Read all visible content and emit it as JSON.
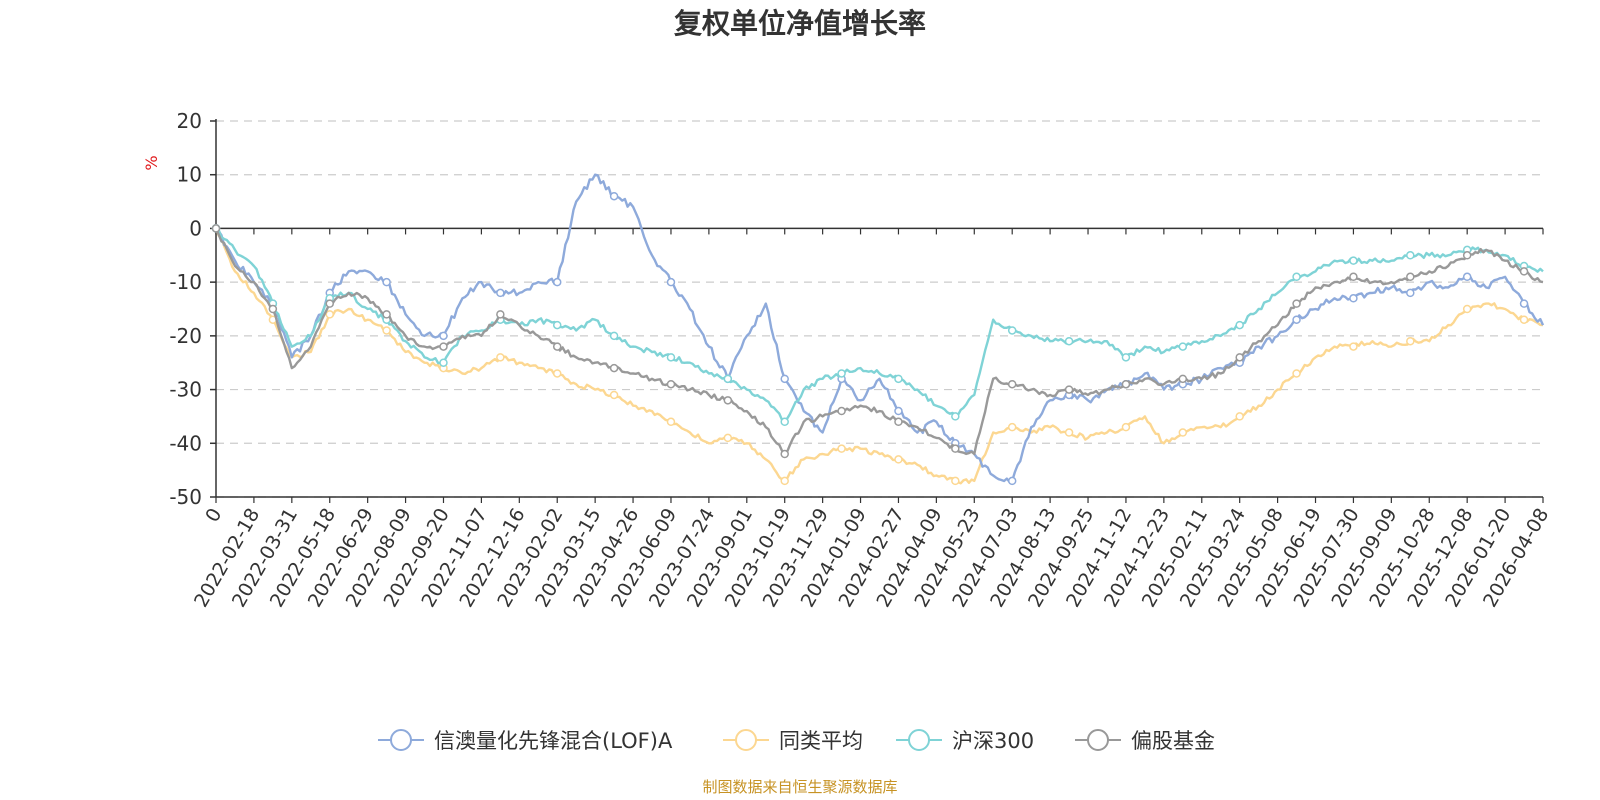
{
  "colors": {
    "fund": "#8eaadb",
    "peer": "#fcd791",
    "hs300": "#7fd3d6",
    "equity": "#999999",
    "grid": "#cccccc",
    "axis": "#333333",
    "unit": "#e0191c",
    "source": "#c79324"
  },
  "chart_data": {
    "type": "line",
    "title": "复权单位净值增长率",
    "ylabel": "%",
    "ylim": [
      -50,
      20
    ],
    "yticks": [
      20,
      10,
      0,
      -10,
      -20,
      -30,
      -40,
      -50
    ],
    "xlabel": "",
    "x_tick_labels": [
      "0",
      "2022-02-18",
      "2022-03-31",
      "2022-05-18",
      "2022-06-29",
      "2022-08-09",
      "2022-09-20",
      "2022-11-07",
      "2022-12-16",
      "2023-02-02",
      "2023-03-15",
      "2023-04-26",
      "2023-06-09",
      "2023-07-24",
      "2023-09-01",
      "2023-10-19",
      "2023-11-29",
      "2024-01-09",
      "2024-02-27",
      "2024-04-09",
      "2024-05-23",
      "2024-07-03",
      "2024-08-13",
      "2024-09-25",
      "2024-11-12",
      "2024-12-23",
      "2025-02-11",
      "2025-03-24",
      "2025-05-08",
      "2025-06-19",
      "2025-07-30",
      "2025-09-09",
      "2025-10-28",
      "2025-12-08",
      "2026-01-20",
      "2026-04-08"
    ],
    "x_index": [
      0,
      0.5,
      1,
      1.5,
      2,
      2.5,
      3,
      3.5,
      4,
      4.5,
      5,
      5.5,
      6,
      6.5,
      7,
      7.5,
      8,
      8.5,
      9,
      9.5,
      10,
      10.5,
      11,
      11.5,
      12,
      12.5,
      13,
      13.5,
      14,
      14.5,
      15,
      15.5,
      16,
      16.5,
      17,
      17.5,
      18,
      18.5,
      19,
      19.5,
      20,
      20.5,
      21,
      21.5,
      22,
      22.5,
      23,
      23.5,
      24,
      24.5,
      25,
      25.5,
      26,
      26.5,
      27,
      27.5,
      28,
      28.5,
      29,
      29.5,
      30,
      30.5,
      31,
      31.5,
      32,
      32.5,
      33,
      33.5,
      34,
      34.5,
      35
    ],
    "series": [
      {
        "name": "信澳量化先锋混合(LOF)A",
        "values": [
          0,
          -6,
          -10,
          -14,
          -24,
          -20,
          -12,
          -8,
          -8,
          -10,
          -16,
          -20,
          -20,
          -13,
          -10,
          -12,
          -12,
          -10,
          -10,
          5,
          10,
          6,
          4,
          -5,
          -10,
          -15,
          -22,
          -28,
          -20,
          -14,
          -28,
          -34,
          -38,
          -28,
          -32,
          -28,
          -34,
          -38,
          -36,
          -40,
          -42,
          -46,
          -47,
          -37,
          -32,
          -31,
          -32,
          -30,
          -29,
          -27,
          -30,
          -29,
          -28,
          -26,
          -25,
          -22,
          -20,
          -17,
          -15,
          -13,
          -13,
          -12,
          -11,
          -12,
          -10,
          -11,
          -9,
          -11,
          -9,
          -14,
          -18
        ]
      },
      {
        "name": "同类平均",
        "values": [
          0,
          -8,
          -12,
          -17,
          -24,
          -23,
          -16,
          -15,
          -17,
          -19,
          -23,
          -25,
          -26,
          -27,
          -26,
          -24,
          -25,
          -26,
          -27,
          -29,
          -30,
          -31,
          -33,
          -34,
          -36,
          -38,
          -40,
          -39,
          -40,
          -43,
          -47,
          -43,
          -42,
          -41,
          -41,
          -42,
          -43,
          -44,
          -46,
          -47,
          -47,
          -38,
          -37,
          -38,
          -37,
          -38,
          -39,
          -38,
          -37,
          -35,
          -40,
          -38,
          -37,
          -37,
          -35,
          -33,
          -30,
          -27,
          -24,
          -22,
          -22,
          -21,
          -22,
          -21,
          -21,
          -18,
          -15,
          -14,
          -15,
          -17,
          -18
        ]
      },
      {
        "name": "沪深300",
        "values": [
          0,
          -4,
          -7,
          -14,
          -22,
          -20,
          -13,
          -12,
          -15,
          -17,
          -21,
          -24,
          -25,
          -20,
          -19,
          -17,
          -18,
          -17,
          -18,
          -19,
          -17,
          -20,
          -22,
          -23,
          -24,
          -25,
          -27,
          -28,
          -30,
          -32,
          -36,
          -30,
          -28,
          -27,
          -26,
          -27,
          -28,
          -30,
          -33,
          -35,
          -31,
          -17,
          -19,
          -20,
          -21,
          -21,
          -21,
          -21,
          -24,
          -22,
          -23,
          -22,
          -21,
          -20,
          -18,
          -15,
          -12,
          -9,
          -8,
          -6,
          -6,
          -6,
          -6,
          -5,
          -5,
          -5,
          -4,
          -4,
          -5,
          -7,
          -8
        ]
      },
      {
        "name": "偏股基金",
        "values": [
          0,
          -7,
          -10,
          -15,
          -26,
          -22,
          -14,
          -12,
          -13,
          -16,
          -20,
          -22,
          -22,
          -20,
          -20,
          -16,
          -18,
          -20,
          -22,
          -24,
          -25,
          -26,
          -27,
          -28,
          -29,
          -30,
          -31,
          -32,
          -34,
          -37,
          -42,
          -36,
          -35,
          -34,
          -33,
          -34,
          -36,
          -37,
          -39,
          -41,
          -42,
          -28,
          -29,
          -30,
          -31,
          -30,
          -31,
          -30,
          -29,
          -28,
          -29,
          -28,
          -28,
          -27,
          -24,
          -21,
          -18,
          -14,
          -11,
          -10,
          -9,
          -10,
          -10,
          -9,
          -8,
          -7,
          -5,
          -4,
          -6,
          -8,
          -10
        ]
      }
    ],
    "legend": [
      "信澳量化先锋混合(LOF)A",
      "同类平均",
      "沪深300",
      "偏股基金"
    ],
    "legend_position": "bottom-center",
    "grid": true
  },
  "source_note": "制图数据来自恒生聚源数据库"
}
